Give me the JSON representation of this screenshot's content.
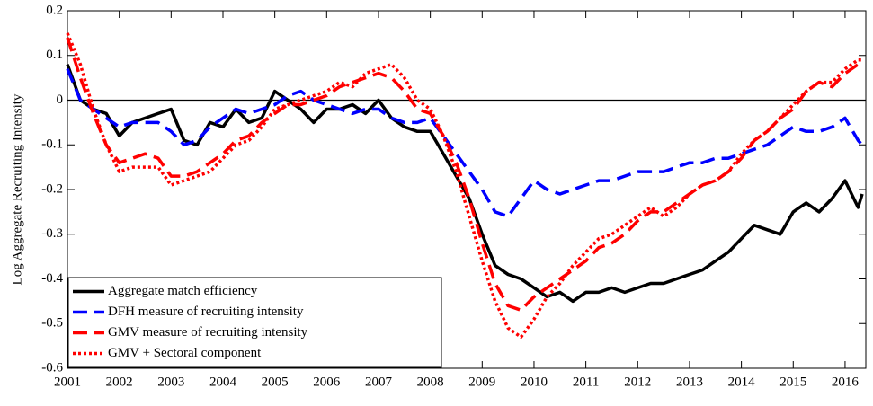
{
  "chart_data": {
    "type": "line",
    "y_label": "Log Aggregate Recruiting Intensity",
    "x": [
      2001.0,
      2001.25,
      2001.5,
      2001.75,
      2002.0,
      2002.25,
      2002.5,
      2002.75,
      2003.0,
      2003.25,
      2003.5,
      2003.75,
      2004.0,
      2004.25,
      2004.5,
      2004.75,
      2005.0,
      2005.25,
      2005.5,
      2005.75,
      2006.0,
      2006.25,
      2006.5,
      2006.75,
      2007.0,
      2007.25,
      2007.5,
      2007.75,
      2008.0,
      2008.25,
      2008.5,
      2008.75,
      2009.0,
      2009.25,
      2009.5,
      2009.75,
      2010.0,
      2010.25,
      2010.5,
      2010.75,
      2011.0,
      2011.25,
      2011.5,
      2011.75,
      2012.0,
      2012.25,
      2012.5,
      2012.75,
      2013.0,
      2013.25,
      2013.5,
      2013.75,
      2014.0,
      2014.25,
      2014.5,
      2014.75,
      2015.0,
      2015.25,
      2015.5,
      2015.75,
      2016.0,
      2016.25,
      2016.33
    ],
    "series": [
      {
        "name": "Aggregate match efficiency",
        "color": "#000000",
        "dash": "solid",
        "values": [
          0.08,
          0.0,
          -0.02,
          -0.03,
          -0.08,
          -0.05,
          -0.04,
          -0.03,
          -0.02,
          -0.09,
          -0.1,
          -0.05,
          -0.06,
          -0.02,
          -0.05,
          -0.04,
          0.02,
          0.0,
          -0.02,
          -0.05,
          -0.02,
          -0.02,
          -0.01,
          -0.03,
          0.0,
          -0.04,
          -0.06,
          -0.07,
          -0.07,
          -0.12,
          -0.17,
          -0.22,
          -0.3,
          -0.37,
          -0.39,
          -0.4,
          -0.42,
          -0.44,
          -0.43,
          -0.45,
          -0.43,
          -0.43,
          -0.42,
          -0.43,
          -0.42,
          -0.41,
          -0.41,
          -0.4,
          -0.39,
          -0.38,
          -0.36,
          -0.34,
          -0.31,
          -0.28,
          -0.29,
          -0.3,
          -0.25,
          -0.23,
          -0.25,
          -0.22,
          -0.18,
          -0.24,
          -0.21
        ]
      },
      {
        "name": "DFH measure of recruiting intensity",
        "color": "#0000ff",
        "dash": "dashed",
        "values": [
          0.07,
          0.0,
          -0.02,
          -0.04,
          -0.06,
          -0.05,
          -0.05,
          -0.05,
          -0.07,
          -0.1,
          -0.09,
          -0.06,
          -0.04,
          -0.02,
          -0.03,
          -0.02,
          -0.01,
          0.01,
          0.02,
          0.0,
          -0.01,
          -0.02,
          -0.03,
          -0.02,
          -0.02,
          -0.04,
          -0.05,
          -0.05,
          -0.04,
          -0.08,
          -0.12,
          -0.16,
          -0.2,
          -0.25,
          -0.26,
          -0.22,
          -0.18,
          -0.2,
          -0.21,
          -0.2,
          -0.19,
          -0.18,
          -0.18,
          -0.17,
          -0.16,
          -0.16,
          -0.16,
          -0.15,
          -0.14,
          -0.14,
          -0.13,
          -0.13,
          -0.12,
          -0.11,
          -0.1,
          -0.08,
          -0.06,
          -0.07,
          -0.07,
          -0.06,
          -0.04,
          -0.09,
          -0.1
        ]
      },
      {
        "name": "GMV measure of recruiting intensity",
        "color": "#ff0000",
        "dash": "dashed",
        "values": [
          0.14,
          0.05,
          -0.03,
          -0.1,
          -0.14,
          -0.13,
          -0.12,
          -0.13,
          -0.17,
          -0.17,
          -0.16,
          -0.14,
          -0.12,
          -0.09,
          -0.08,
          -0.05,
          -0.03,
          -0.01,
          -0.01,
          0.0,
          0.01,
          0.03,
          0.04,
          0.05,
          0.06,
          0.05,
          0.02,
          -0.02,
          -0.03,
          -0.08,
          -0.14,
          -0.22,
          -0.32,
          -0.41,
          -0.46,
          -0.47,
          -0.44,
          -0.42,
          -0.4,
          -0.38,
          -0.36,
          -0.33,
          -0.32,
          -0.3,
          -0.27,
          -0.25,
          -0.25,
          -0.23,
          -0.21,
          -0.19,
          -0.18,
          -0.16,
          -0.13,
          -0.09,
          -0.07,
          -0.04,
          -0.02,
          0.02,
          0.04,
          0.03,
          0.06,
          0.08,
          0.08
        ]
      },
      {
        "name": "GMV + Sectoral component",
        "color": "#ff0000",
        "dash": "dotted",
        "values": [
          0.15,
          0.08,
          -0.02,
          -0.1,
          -0.16,
          -0.15,
          -0.15,
          -0.15,
          -0.19,
          -0.18,
          -0.17,
          -0.16,
          -0.13,
          -0.1,
          -0.09,
          -0.06,
          -0.02,
          -0.01,
          0.0,
          0.01,
          0.02,
          0.04,
          0.03,
          0.06,
          0.07,
          0.08,
          0.05,
          0.0,
          -0.02,
          -0.08,
          -0.16,
          -0.26,
          -0.36,
          -0.45,
          -0.51,
          -0.53,
          -0.49,
          -0.44,
          -0.41,
          -0.37,
          -0.34,
          -0.31,
          -0.3,
          -0.28,
          -0.26,
          -0.24,
          -0.26,
          -0.24,
          -0.21,
          -0.19,
          -0.18,
          -0.16,
          -0.12,
          -0.09,
          -0.07,
          -0.04,
          -0.01,
          0.02,
          0.04,
          0.04,
          0.07,
          0.09,
          0.09
        ]
      }
    ],
    "xlim": [
      2001,
      2016.4
    ],
    "xticks": [
      2001,
      2002,
      2003,
      2004,
      2005,
      2006,
      2007,
      2008,
      2009,
      2010,
      2011,
      2012,
      2013,
      2014,
      2015,
      2016
    ],
    "ylim": [
      -0.6,
      0.2
    ],
    "yticks": [
      0.2,
      0.1,
      0,
      -0.1,
      -0.2,
      -0.3,
      -0.4,
      -0.5,
      -0.6
    ],
    "zero_line": true,
    "legend": "lower left"
  }
}
